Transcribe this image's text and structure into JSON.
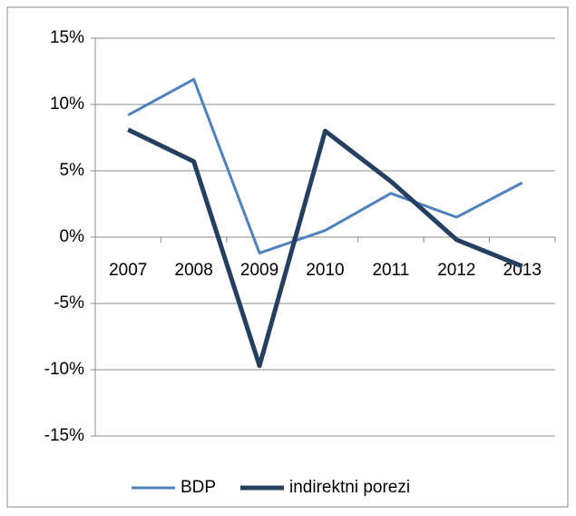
{
  "chart_data": {
    "type": "line",
    "categories": [
      "2007",
      "2008",
      "2009",
      "2010",
      "2011",
      "2012",
      "2013"
    ],
    "series": [
      {
        "name": "BDP",
        "color": "#4f81bd",
        "values": [
          9.2,
          11.9,
          -1.2,
          0.5,
          3.3,
          1.5,
          4.1
        ]
      },
      {
        "name": "indirektni porezi",
        "color": "#243f60",
        "values": [
          8.1,
          5.7,
          -9.7,
          8.0,
          4.2,
          -0.2,
          -2.2
        ]
      }
    ],
    "ylim": [
      -15,
      15
    ],
    "yticks": [
      {
        "value": -15,
        "label": "-15%"
      },
      {
        "value": -10,
        "label": "-10%"
      },
      {
        "value": -5,
        "label": "-5%"
      },
      {
        "value": 0,
        "label": "0%"
      },
      {
        "value": 5,
        "label": "5%"
      },
      {
        "value": 10,
        "label": "10%"
      },
      {
        "value": 15,
        "label": "15%"
      }
    ],
    "grid": true,
    "legend": "bottom"
  }
}
